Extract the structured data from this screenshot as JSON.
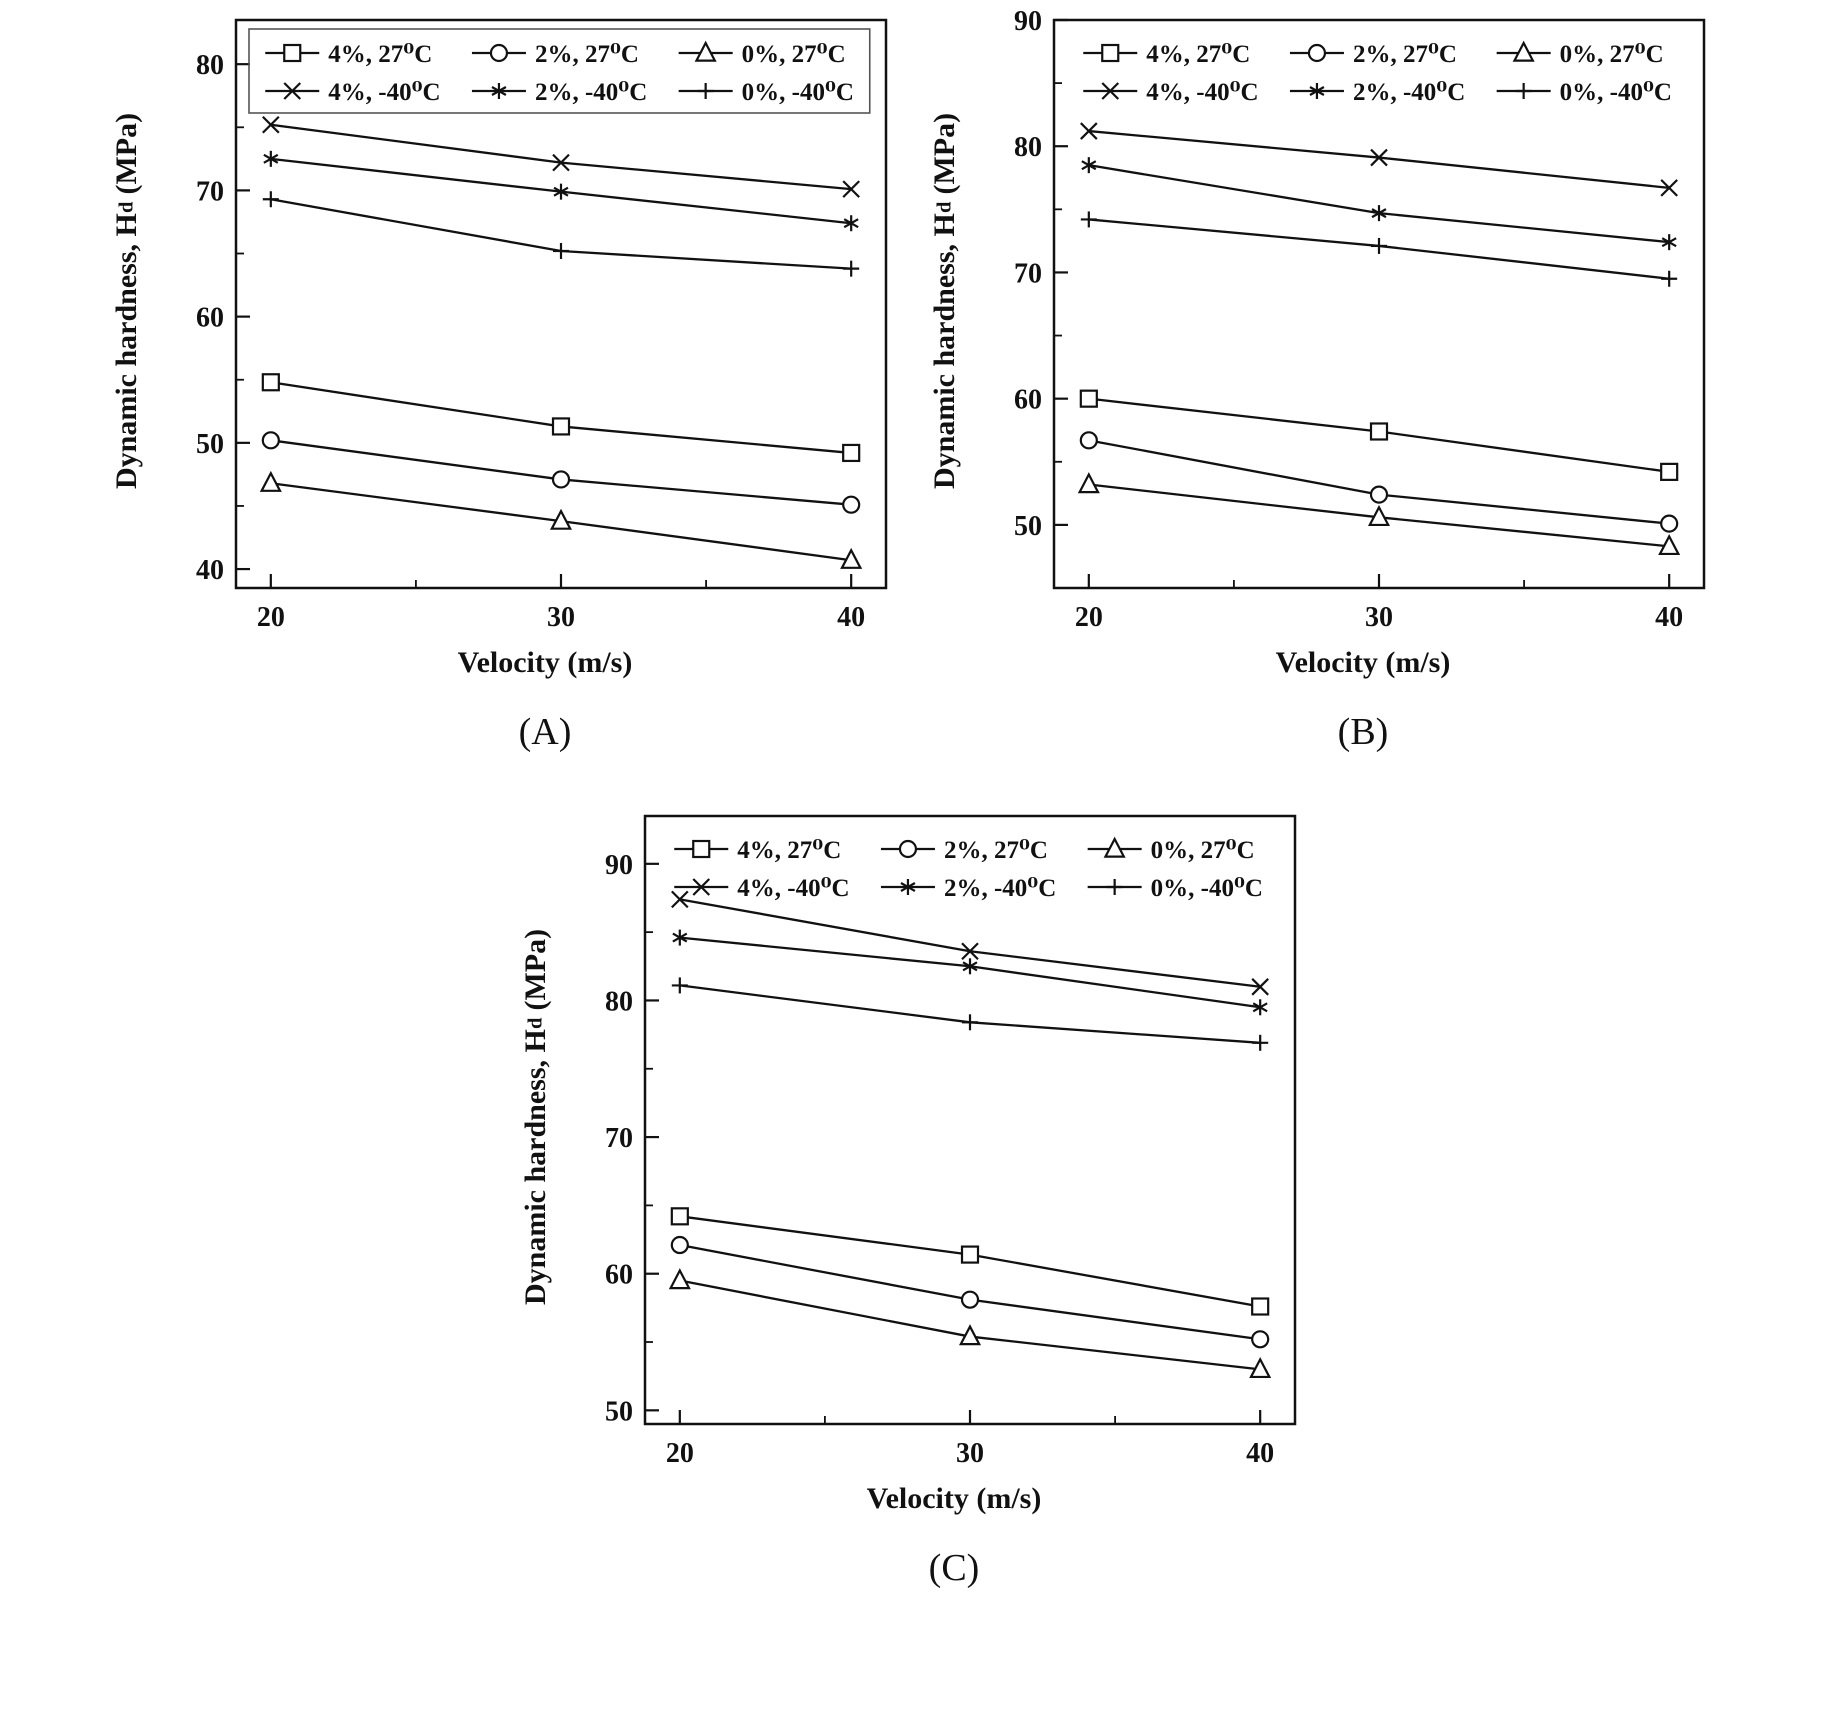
{
  "chart_data": [
    {
      "type": "line",
      "caption": "(A)",
      "xlabel": "Velocity (m/s)",
      "ylabel_main": "Dynamic hardness, H",
      "ylabel_sub": "d",
      "ylabel_unit": " (MPa)",
      "x": [
        20,
        30,
        40
      ],
      "xticks": [
        20,
        30,
        40
      ],
      "xminor": [
        25,
        35
      ],
      "xlim": [
        18.8,
        41.2
      ],
      "ylim": [
        38.5,
        83.5
      ],
      "yticks": [
        40,
        50,
        60,
        70,
        80
      ],
      "yminor": [
        45,
        55,
        65,
        75
      ],
      "grid": false,
      "legend": {
        "position": "top-inside",
        "box": true
      },
      "series": [
        {
          "name": "4%, 27⁰C",
          "marker": "square",
          "values": [
            54.8,
            51.3,
            49.2
          ]
        },
        {
          "name": "2%, 27⁰C",
          "marker": "circle",
          "values": [
            50.2,
            47.1,
            45.1
          ]
        },
        {
          "name": "0%, 27⁰C",
          "marker": "triangle",
          "values": [
            46.8,
            43.8,
            40.7
          ]
        },
        {
          "name": "4%, -40⁰C",
          "marker": "x",
          "values": [
            75.2,
            72.2,
            70.1
          ]
        },
        {
          "name": "2%, -40⁰C",
          "marker": "asterisk",
          "values": [
            72.5,
            69.9,
            67.4
          ]
        },
        {
          "name": "0%, -40⁰C",
          "marker": "plus",
          "values": [
            69.3,
            65.2,
            63.8
          ]
        }
      ]
    },
    {
      "type": "line",
      "caption": "(B)",
      "xlabel": "Velocity (m/s)",
      "ylabel_main": "Dynamic hardness, H",
      "ylabel_sub": "d",
      "ylabel_unit": " (MPa)",
      "x": [
        20,
        30,
        40
      ],
      "xticks": [
        20,
        30,
        40
      ],
      "xminor": [
        25,
        35
      ],
      "xlim": [
        18.8,
        41.2
      ],
      "ylim": [
        45,
        90
      ],
      "yticks": [
        50,
        60,
        70,
        80,
        90
      ],
      "yminor": [
        55,
        65,
        75,
        85
      ],
      "grid": false,
      "legend": {
        "position": "top-inside",
        "box": false
      },
      "series": [
        {
          "name": "4%, 27⁰C",
          "marker": "square",
          "values": [
            60.0,
            57.4,
            54.2
          ]
        },
        {
          "name": "2%, 27⁰C",
          "marker": "circle",
          "values": [
            56.7,
            52.4,
            50.1
          ]
        },
        {
          "name": "0%, 27⁰C",
          "marker": "triangle",
          "values": [
            53.2,
            50.6,
            48.3
          ]
        },
        {
          "name": "4%, -40⁰C",
          "marker": "x",
          "values": [
            81.2,
            79.1,
            76.7
          ]
        },
        {
          "name": "2%, -40⁰C",
          "marker": "asterisk",
          "values": [
            78.5,
            74.7,
            72.4
          ]
        },
        {
          "name": "0%, -40⁰C",
          "marker": "plus",
          "values": [
            74.2,
            72.1,
            69.5
          ]
        }
      ]
    },
    {
      "type": "line",
      "caption": "(C)",
      "xlabel": "Velocity (m/s)",
      "ylabel_main": "Dynamic hardness, H",
      "ylabel_sub": "d",
      "ylabel_unit": " (MPa)",
      "x": [
        20,
        30,
        40
      ],
      "xticks": [
        20,
        30,
        40
      ],
      "xminor": [
        25,
        35
      ],
      "xlim": [
        18.8,
        41.2
      ],
      "ylim": [
        49,
        93.5
      ],
      "yticks": [
        50,
        60,
        70,
        80,
        90
      ],
      "yminor": [
        55,
        65,
        75,
        85
      ],
      "grid": false,
      "legend": {
        "position": "top-inside",
        "box": false
      },
      "series": [
        {
          "name": "4%, 27⁰C",
          "marker": "square",
          "values": [
            64.2,
            61.4,
            57.6
          ]
        },
        {
          "name": "2%, 27⁰C",
          "marker": "circle",
          "values": [
            62.1,
            58.1,
            55.2
          ]
        },
        {
          "name": "0%, 27⁰C",
          "marker": "triangle",
          "values": [
            59.5,
            55.4,
            53.0
          ]
        },
        {
          "name": "4%, -40⁰C",
          "marker": "x",
          "values": [
            87.4,
            83.6,
            81.0
          ]
        },
        {
          "name": "2%, -40⁰C",
          "marker": "asterisk",
          "values": [
            84.6,
            82.5,
            79.5
          ]
        },
        {
          "name": "0%, -40⁰C",
          "marker": "plus",
          "values": [
            81.1,
            78.4,
            76.9
          ]
        }
      ]
    }
  ]
}
